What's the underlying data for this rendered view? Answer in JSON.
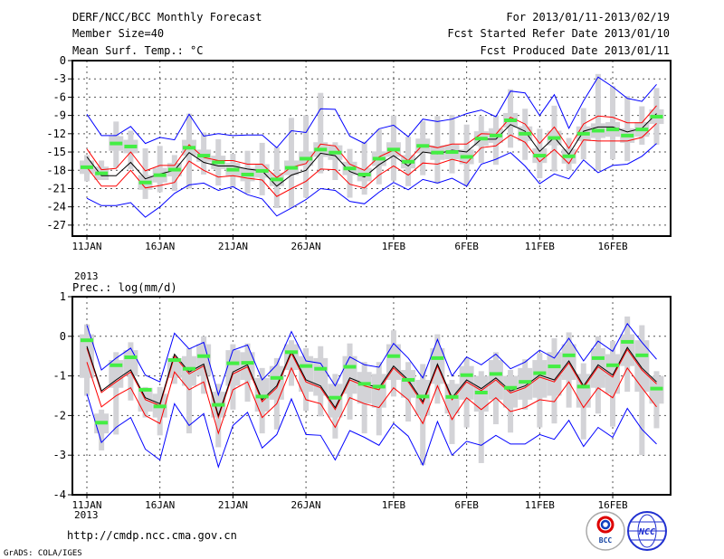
{
  "header": {
    "title": "DERF/NCC/BCC Monthly Forecast",
    "member_size": "Member Size=40",
    "period": "For 2013/01/11-2013/02/19",
    "start_date": "Fcst Started Refer Date 2013/01/10",
    "produced_date": "Fcst Produced Date 2013/01/11"
  },
  "footer": {
    "url": "http://cmdp.ncc.cma.gov.cn",
    "grads": "GrADS: COLA/IGES",
    "logo_bcc": "BCC",
    "logo_ncc": "NCC"
  },
  "colors": {
    "envelope": "#0000ff",
    "spread": "#ff0000",
    "mean": "#000000",
    "obs": "#44ee44",
    "range": "#d3d3d7"
  },
  "chart_data": [
    {
      "type": "line",
      "title": "Mean Surf. Temp.: °C",
      "xlabel": "",
      "ylabel": "Mean Surf. Temp.: °C",
      "ylim": [
        -28.8,
        0
      ],
      "yticks": [
        0,
        -3,
        -6,
        -9,
        -12,
        -15,
        -18,
        -21,
        -24,
        -27
      ],
      "xticks": [
        {
          "day": 0,
          "label": "11JAN"
        },
        {
          "day": 5,
          "label": "16JAN"
        },
        {
          "day": 10,
          "label": "21JAN"
        },
        {
          "day": 15,
          "label": "26JAN"
        },
        {
          "day": 21,
          "label": "1FEB"
        },
        {
          "day": 26,
          "label": "6FEB"
        },
        {
          "day": 31,
          "label": "11FEB"
        },
        {
          "day": 36,
          "label": "16FEB"
        }
      ],
      "year_label": "2013",
      "grid": true,
      "series": [
        {
          "name": "upper envelope",
          "color": "blue",
          "values": [
            -8.8,
            -12.3,
            -12.3,
            -10.8,
            -13.6,
            -12.6,
            -13.0,
            -8.8,
            -12.4,
            -12.0,
            -12.3,
            -12.2,
            -12.2,
            -14.3,
            -11.5,
            -11.8,
            -7.9,
            -8.0,
            -12.4,
            -13.6,
            -11.2,
            -10.6,
            -12.5,
            -9.6,
            -10.0,
            -9.6,
            -8.7,
            -8.1,
            -9.2,
            -5.0,
            -5.3,
            -9.0,
            -5.6,
            -11.1,
            -6.6,
            -2.7,
            -4.3,
            -6.2,
            -6.7,
            -3.9
          ]
        },
        {
          "name": "upper spread",
          "color": "red",
          "values": [
            -14.5,
            -17.9,
            -17.7,
            -15.0,
            -18.1,
            -17.2,
            -17.2,
            -13.8,
            -15.9,
            -16.4,
            -16.4,
            -17.0,
            -17.0,
            -19.2,
            -17.5,
            -16.9,
            -13.7,
            -14.0,
            -17.0,
            -18.0,
            -15.8,
            -14.7,
            -16.4,
            -13.8,
            -14.3,
            -13.7,
            -13.7,
            -12.0,
            -12.1,
            -9.3,
            -10.4,
            -13.6,
            -10.9,
            -14.4,
            -10.4,
            -9.1,
            -9.3,
            -10.2,
            -10.2,
            -7.4
          ]
        },
        {
          "name": "ensemble mean",
          "color": "black",
          "values": [
            -15.8,
            -18.9,
            -18.9,
            -16.7,
            -19.4,
            -18.6,
            -18.0,
            -15.1,
            -16.7,
            -17.3,
            -17.3,
            -17.8,
            -18.1,
            -20.6,
            -18.8,
            -18.0,
            -15.2,
            -15.6,
            -18.2,
            -19.1,
            -17.1,
            -15.6,
            -17.3,
            -15.0,
            -15.3,
            -14.7,
            -15.0,
            -12.9,
            -12.9,
            -10.5,
            -11.6,
            -14.9,
            -12.6,
            -15.4,
            -11.6,
            -10.9,
            -10.9,
            -11.7,
            -11.1,
            -8.7
          ]
        },
        {
          "name": "lower spread",
          "color": "red",
          "values": [
            -17.5,
            -20.6,
            -20.6,
            -18.0,
            -20.9,
            -20.5,
            -20.0,
            -16.5,
            -18.0,
            -19.1,
            -18.9,
            -19.3,
            -19.6,
            -22.3,
            -21.0,
            -19.8,
            -17.8,
            -17.9,
            -20.3,
            -20.9,
            -18.8,
            -17.3,
            -18.8,
            -16.8,
            -17.0,
            -16.2,
            -16.8,
            -14.3,
            -14.0,
            -12.2,
            -13.4,
            -16.6,
            -14.6,
            -16.9,
            -13.0,
            -13.2,
            -13.2,
            -13.2,
            -12.6,
            -10.3
          ]
        },
        {
          "name": "lower envelope",
          "color": "blue",
          "values": [
            -22.6,
            -23.8,
            -23.8,
            -23.3,
            -25.7,
            -24.0,
            -21.8,
            -20.4,
            -20.1,
            -21.3,
            -20.7,
            -22.0,
            -22.7,
            -25.5,
            -24.2,
            -22.8,
            -21.0,
            -21.3,
            -23.1,
            -23.5,
            -21.6,
            -20.0,
            -21.2,
            -19.5,
            -20.1,
            -19.3,
            -20.6,
            -17.0,
            -16.2,
            -15.1,
            -17.3,
            -20.2,
            -18.6,
            -19.4,
            -16.3,
            -18.4,
            -17.2,
            -17.0,
            -15.7,
            -13.6
          ]
        }
      ],
      "observed": [
        -17.5,
        -18.5,
        -13.6,
        -14.1,
        -20.0,
        -18.8,
        -17.9,
        -14.3,
        -15.6,
        -16.7,
        -17.9,
        -18.7,
        -18.1,
        -19.5,
        -17.6,
        -16.1,
        -14.6,
        -15.1,
        -17.7,
        -18.7,
        -16.1,
        -14.6,
        -16.6,
        -14.0,
        -15.1,
        -15.0,
        -15.8,
        -12.8,
        -12.3,
        -9.8,
        -12.0,
        -15.6,
        -12.7,
        -15.7,
        -12.0,
        -11.5,
        -11.3,
        -12.3,
        -11.3,
        -9.2
      ],
      "range_high": [
        -15.5,
        -16.4,
        -10.0,
        -11.5,
        -14.4,
        -14.0,
        -15.5,
        -8.7,
        -11.8,
        -12.9,
        -15.3,
        -14.8,
        -13.5,
        -14.2,
        -9.4,
        -9.0,
        -5.3,
        -13.4,
        -14.5,
        -13.3,
        -11.3,
        -9.0,
        -12.5,
        -9.9,
        -9.1,
        -8.9,
        -10.5,
        -9.1,
        -9.0,
        -4.7,
        -7.9,
        -11.2,
        -7.4,
        -12.7,
        -7.8,
        -2.2,
        -4.2,
        -5.8,
        -7.5,
        -4.5
      ],
      "range_low": [
        -19.8,
        -19.6,
        -17.6,
        -17.8,
        -22.7,
        -21.6,
        -21.4,
        -21.0,
        -18.7,
        -20.5,
        -20.8,
        -21.8,
        -22.1,
        -24.2,
        -24.2,
        -22.5,
        -18.5,
        -19.6,
        -22.5,
        -22.0,
        -20.3,
        -19.7,
        -20.6,
        -18.8,
        -20.2,
        -18.5,
        -20.6,
        -16.8,
        -17.1,
        -14.3,
        -16.3,
        -19.3,
        -18.2,
        -18.0,
        -16.2,
        -18.0,
        -16.2,
        -16.5,
        -13.8,
        -13.8
      ],
      "box_high": [
        -16.4,
        -17.4,
        -12.4,
        -13.0,
        -18.8,
        -17.6,
        -16.8,
        -13.0,
        -14.6,
        -15.6,
        -16.8,
        -17.6,
        -17.0,
        -18.4,
        -16.4,
        -14.9,
        -13.4,
        -13.9,
        -16.6,
        -17.6,
        -14.9,
        -13.4,
        -15.5,
        -12.8,
        -13.9,
        -13.8,
        -14.6,
        -11.6,
        -11.1,
        -8.6,
        -10.8,
        -14.4,
        -11.5,
        -14.5,
        -10.8,
        -10.3,
        -10.1,
        -11.1,
        -10.1,
        -8.0
      ],
      "box_low": [
        -18.6,
        -19.6,
        -14.8,
        -15.2,
        -21.2,
        -20.0,
        -19.0,
        -15.6,
        -16.6,
        -17.8,
        -19.0,
        -19.8,
        -19.2,
        -20.6,
        -18.8,
        -17.3,
        -15.8,
        -16.3,
        -18.8,
        -19.8,
        -17.3,
        -15.8,
        -17.7,
        -15.2,
        -16.3,
        -16.2,
        -17.0,
        -14.0,
        -13.5,
        -11.0,
        -13.2,
        -16.8,
        -13.9,
        -16.9,
        -13.2,
        -12.7,
        -12.5,
        -13.5,
        -12.5,
        -10.4
      ]
    },
    {
      "type": "line",
      "title": "Prec.: log(mm/d)",
      "xlabel": "",
      "ylabel": "Prec.: log(mm/d)",
      "ylim": [
        -4,
        1
      ],
      "yticks": [
        1,
        0,
        -1,
        -2,
        -3,
        -4
      ],
      "xticks": [
        {
          "day": 0,
          "label": "11JAN"
        },
        {
          "day": 5,
          "label": "16JAN"
        },
        {
          "day": 10,
          "label": "21JAN"
        },
        {
          "day": 15,
          "label": "26JAN"
        },
        {
          "day": 21,
          "label": "1FEB"
        },
        {
          "day": 26,
          "label": "6FEB"
        },
        {
          "day": 31,
          "label": "11FEB"
        },
        {
          "day": 36,
          "label": "16FEB"
        }
      ],
      "year_label": "2013",
      "grid": true,
      "series": [
        {
          "name": "upper envelope",
          "color": "blue",
          "values": [
            0.28,
            -0.85,
            -0.55,
            -0.3,
            -0.98,
            -1.15,
            0.08,
            -0.32,
            -0.15,
            -1.48,
            -0.35,
            -0.22,
            -1.1,
            -0.72,
            0.12,
            -0.62,
            -0.68,
            -1.25,
            -0.52,
            -0.72,
            -0.78,
            -0.18,
            -0.55,
            -1.05,
            -0.08,
            -1.0,
            -0.52,
            -0.72,
            -0.45,
            -0.82,
            -0.65,
            -0.35,
            -0.55,
            -0.05,
            -0.62,
            -0.12,
            -0.38,
            0.32,
            -0.15,
            -0.58
          ]
        },
        {
          "name": "upper spread",
          "color": "red",
          "values": [
            -0.3,
            -1.42,
            -1.15,
            -0.9,
            -1.6,
            -1.75,
            -0.5,
            -0.95,
            -0.75,
            -2.05,
            -0.95,
            -0.77,
            -1.65,
            -1.3,
            -0.43,
            -1.15,
            -1.3,
            -1.85,
            -1.1,
            -1.25,
            -1.35,
            -0.8,
            -1.15,
            -1.7,
            -0.75,
            -1.6,
            -1.15,
            -1.37,
            -1.1,
            -1.43,
            -1.3,
            -1.03,
            -1.15,
            -0.67,
            -1.3,
            -0.77,
            -1.03,
            -0.33,
            -0.85,
            -1.2
          ]
        },
        {
          "name": "ensemble mean",
          "color": "black",
          "values": [
            -0.25,
            -1.38,
            -1.1,
            -0.85,
            -1.55,
            -1.7,
            -0.45,
            -0.9,
            -0.7,
            -2.0,
            -0.9,
            -0.72,
            -1.6,
            -1.25,
            -0.38,
            -1.1,
            -1.25,
            -1.8,
            -1.05,
            -1.2,
            -1.3,
            -0.75,
            -1.1,
            -1.65,
            -0.7,
            -1.55,
            -1.1,
            -1.32,
            -1.05,
            -1.38,
            -1.25,
            -0.98,
            -1.1,
            -0.62,
            -1.25,
            -0.72,
            -0.98,
            -0.28,
            -0.8,
            -1.15
          ]
        },
        {
          "name": "lower spread",
          "color": "red",
          "values": [
            -0.65,
            -1.78,
            -1.5,
            -1.3,
            -2.0,
            -2.2,
            -0.9,
            -1.35,
            -1.15,
            -2.45,
            -1.35,
            -1.15,
            -2.05,
            -1.7,
            -0.8,
            -1.6,
            -1.7,
            -2.3,
            -1.55,
            -1.7,
            -1.8,
            -1.3,
            -1.6,
            -2.2,
            -1.25,
            -2.1,
            -1.55,
            -1.85,
            -1.55,
            -1.9,
            -1.8,
            -1.6,
            -1.65,
            -1.15,
            -1.8,
            -1.3,
            -1.55,
            -0.8,
            -1.3,
            -1.78
          ]
        },
        {
          "name": "lower envelope",
          "color": "blue",
          "values": [
            -1.45,
            -2.68,
            -2.3,
            -2.05,
            -2.85,
            -3.12,
            -1.7,
            -2.25,
            -1.95,
            -3.3,
            -2.25,
            -1.92,
            -2.82,
            -2.48,
            -1.58,
            -2.48,
            -2.5,
            -3.12,
            -2.38,
            -2.55,
            -2.75,
            -2.2,
            -2.52,
            -3.25,
            -2.15,
            -3.0,
            -2.65,
            -2.75,
            -2.5,
            -2.72,
            -2.72,
            -2.48,
            -2.6,
            -2.12,
            -2.78,
            -2.3,
            -2.55,
            -1.82,
            -2.35,
            -2.72
          ]
        }
      ],
      "observed": [
        -0.1,
        -2.18,
        -0.73,
        -0.53,
        -1.35,
        -1.77,
        -0.6,
        -0.82,
        -0.5,
        -1.73,
        -0.68,
        -0.67,
        -1.52,
        -1.05,
        -0.4,
        -0.75,
        -0.82,
        -1.55,
        -0.77,
        -1.2,
        -1.27,
        -0.5,
        -1.1,
        -1.52,
        -0.55,
        -1.53,
        -0.98,
        -1.42,
        -0.95,
        -1.3,
        -1.15,
        -0.93,
        -0.76,
        -0.48,
        -1.27,
        -0.55,
        -0.73,
        -0.14,
        -0.48,
        -1.32
      ],
      "range_high": [
        0.3,
        -1.85,
        -0.4,
        -0.15,
        -1.28,
        -1.28,
        -0.5,
        -0.3,
        0.0,
        -1.2,
        -0.2,
        -0.18,
        -0.8,
        -0.55,
        -0.1,
        -0.3,
        -0.25,
        -0.95,
        -0.18,
        -0.65,
        -0.65,
        0.15,
        -0.65,
        -0.7,
        0.05,
        -1.1,
        -0.55,
        -0.88,
        -0.4,
        -0.85,
        -0.58,
        -0.42,
        -0.05,
        0.1,
        -0.68,
        0.0,
        -0.12,
        0.5,
        0.28,
        -0.88
      ],
      "range_low": [
        -1.5,
        -2.88,
        -2.48,
        -1.62,
        -2.05,
        -2.5,
        -1.2,
        -2.45,
        -1.45,
        -2.8,
        -1.85,
        -1.65,
        -2.45,
        -2.35,
        -1.25,
        -1.88,
        -2.02,
        -2.58,
        -2.1,
        -2.45,
        -2.5,
        -1.52,
        -2.15,
        -3.25,
        -1.7,
        -2.72,
        -2.3,
        -3.2,
        -2.22,
        -2.43,
        -1.85,
        -2.3,
        -2.2,
        -1.8,
        -2.6,
        -1.95,
        -2.28,
        -1.4,
        -3.0,
        -2.32
      ],
      "box_high": [
        0.05,
        -1.95,
        -0.6,
        -0.35,
        -1.3,
        -1.45,
        -0.55,
        -0.5,
        -0.2,
        -1.4,
        -0.35,
        -0.4,
        -1.05,
        -0.75,
        -0.2,
        -0.5,
        -0.55,
        -1.2,
        -0.5,
        -0.9,
        -0.95,
        -0.2,
        -0.85,
        -1.1,
        -0.3,
        -1.2,
        -0.75,
        -1.0,
        -0.6,
        -1.0,
        -0.8,
        -0.6,
        -0.4,
        -0.2,
        -0.95,
        -0.3,
        -0.45,
        0.05,
        -0.1,
        -1.0
      ],
      "box_low": [
        -1.05,
        -2.45,
        -1.3,
        -1.0,
        -1.9,
        -2.05,
        -1.05,
        -1.25,
        -1.0,
        -2.05,
        -1.25,
        -1.1,
        -1.9,
        -1.6,
        -0.85,
        -1.4,
        -1.5,
        -2.05,
        -1.45,
        -1.7,
        -1.8,
        -1.1,
        -1.55,
        -2.0,
        -1.2,
        -1.95,
        -1.6,
        -1.9,
        -1.6,
        -1.8,
        -1.6,
        -1.55,
        -1.5,
        -1.1,
        -1.8,
        -1.3,
        -1.45,
        -0.75,
        -1.4,
        -1.7
      ]
    }
  ]
}
